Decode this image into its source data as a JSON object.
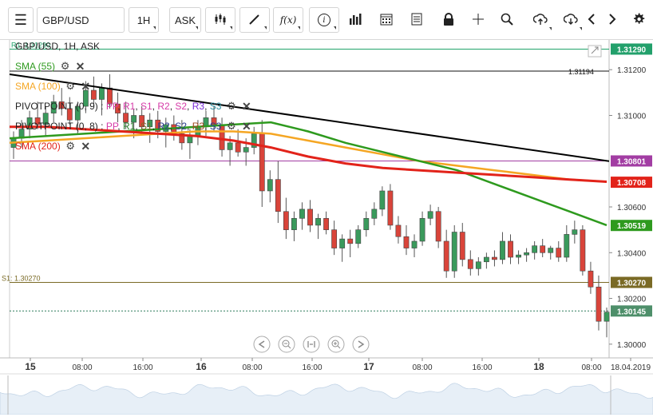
{
  "toolbar": {
    "symbol": "GBP/USD",
    "timeframe": "1H",
    "price_type": "ASK",
    "icons": [
      "menu-icon",
      "candlestick-icon",
      "draw-line-icon",
      "function-icon",
      "info-icon",
      "bar-chart-icon",
      "calendar-icon",
      "news-icon",
      "lock-icon",
      "crosshair-icon",
      "zoom-icon",
      "upload-icon",
      "download-icon",
      "chevron-left-icon",
      "chevron-right-icon",
      "gear-icon"
    ]
  },
  "legend": {
    "instrument": "GBP/USD, 1H, ASK",
    "sma55": "SMA (55)",
    "sma100": "SMA (100)",
    "pivot1_name": "PIVOTPOINT (0, 9)",
    "pivot2_name": "PIVOTPOINT (0, 8)",
    "sma200": "SMA (200)",
    "pivot_sep": " : ",
    "pivot_labels": [
      "PP",
      "R1",
      "S1",
      "R2",
      "S2",
      "R3",
      "S3"
    ],
    "pivot1_colors": [
      "#d63aa8",
      "#d63aa8",
      "#d63aa8",
      "#d63aa8",
      "#d63aa8",
      "#7a2bd6",
      "#2a8fa0"
    ],
    "pivot2_colors": [
      "#d63aa8",
      "#2a7d2a",
      "#7a6a2a",
      "#2a3c8f",
      "#2a3c8f",
      "#a04a20",
      "#2a3c8f"
    ]
  },
  "colors": {
    "sma55": "#2e9a1e",
    "sma100": "#f5a623",
    "sma200": "#e2231a",
    "trend": "#000000",
    "up": "#3a9a5c",
    "down": "#d9443a",
    "r1_line": "#21a36b",
    "pivot_line": "#a23da3",
    "s1_line": "#7a6a25",
    "last_line": "#2e7d5b"
  },
  "chart_data": {
    "type": "candlestick",
    "symbol": "GBP/USD",
    "ylim": [
      1.2994,
      1.3133
    ],
    "y_ticks": [
      "1.31200",
      "1.31000",
      "1.30600",
      "1.30400",
      "1.30200",
      "1.30000"
    ],
    "x_ticks": [
      "15",
      "08:00",
      "16:00",
      "16",
      "08:00",
      "16:00",
      "17",
      "08:00",
      "16:00",
      "18",
      "08:00",
      "18.04.2019"
    ],
    "levels": {
      "r1": {
        "label": "R1: 1.31290",
        "value": 1.3129,
        "tag": "1.31290"
      },
      "trend_end": {
        "value": 1.30801,
        "tag": "1.30801"
      },
      "sma200_end": {
        "value": 1.30708,
        "tag": "1.30708"
      },
      "sma55_end": {
        "value": 1.30519,
        "tag": "1.30519"
      },
      "s1": {
        "label": "S1: 1.30270",
        "value": 1.3027,
        "tag": "1.30270"
      },
      "last": {
        "value": 1.30145,
        "tag": "1.30145"
      },
      "trendline_label": "1.31194"
    },
    "candles": [
      [
        1.3086,
        1.3093,
        1.3081,
        1.309
      ],
      [
        1.309,
        1.3098,
        1.3086,
        1.3094
      ],
      [
        1.3094,
        1.3102,
        1.309,
        1.3099
      ],
      [
        1.3099,
        1.3106,
        1.3094,
        1.3096
      ],
      [
        1.3096,
        1.3104,
        1.3091,
        1.3101
      ],
      [
        1.3101,
        1.3109,
        1.3097,
        1.3106
      ],
      [
        1.3106,
        1.3112,
        1.31,
        1.3103
      ],
      [
        1.3103,
        1.3108,
        1.3096,
        1.3098
      ],
      [
        1.3098,
        1.3106,
        1.3092,
        1.3104
      ],
      [
        1.3104,
        1.3115,
        1.3101,
        1.3111
      ],
      [
        1.3111,
        1.3117,
        1.3104,
        1.3107
      ],
      [
        1.3107,
        1.3114,
        1.31,
        1.3112
      ],
      [
        1.3112,
        1.3118,
        1.3103,
        1.3105
      ],
      [
        1.3105,
        1.311,
        1.3097,
        1.3101
      ],
      [
        1.3101,
        1.3106,
        1.3094,
        1.3097
      ],
      [
        1.3097,
        1.3103,
        1.309,
        1.31
      ],
      [
        1.31,
        1.3104,
        1.3093,
        1.3095
      ],
      [
        1.3095,
        1.3101,
        1.3088,
        1.3098
      ],
      [
        1.3098,
        1.3102,
        1.309,
        1.3093
      ],
      [
        1.3093,
        1.3099,
        1.3086,
        1.3096
      ],
      [
        1.3096,
        1.31,
        1.3089,
        1.3092
      ],
      [
        1.3092,
        1.3098,
        1.3085,
        1.3088
      ],
      [
        1.3088,
        1.3094,
        1.3081,
        1.3091
      ],
      [
        1.3091,
        1.3098,
        1.3087,
        1.3095
      ],
      [
        1.3095,
        1.3102,
        1.3091,
        1.3099
      ],
      [
        1.3099,
        1.3104,
        1.3093,
        1.3096
      ],
      [
        1.3096,
        1.3099,
        1.3082,
        1.3085
      ],
      [
        1.3085,
        1.3091,
        1.3078,
        1.3088
      ],
      [
        1.3088,
        1.3094,
        1.3082,
        1.3084
      ],
      [
        1.3084,
        1.309,
        1.3078,
        1.3086
      ],
      [
        1.3086,
        1.3095,
        1.3083,
        1.3092
      ],
      [
        1.3092,
        1.3098,
        1.306,
        1.3067
      ],
      [
        1.3067,
        1.3076,
        1.3062,
        1.3072
      ],
      [
        1.3072,
        1.308,
        1.3053,
        1.3058
      ],
      [
        1.3058,
        1.3064,
        1.3046,
        1.305
      ],
      [
        1.305,
        1.3058,
        1.3045,
        1.3055
      ],
      [
        1.3055,
        1.3062,
        1.305,
        1.3059
      ],
      [
        1.3059,
        1.3063,
        1.3049,
        1.3052
      ],
      [
        1.3052,
        1.3057,
        1.3046,
        1.3055
      ],
      [
        1.3055,
        1.3058,
        1.3048,
        1.305
      ],
      [
        1.305,
        1.3054,
        1.3039,
        1.3042
      ],
      [
        1.3042,
        1.3048,
        1.3036,
        1.3046
      ],
      [
        1.3046,
        1.305,
        1.3038,
        1.3044
      ],
      [
        1.3044,
        1.3052,
        1.3042,
        1.305
      ],
      [
        1.305,
        1.3058,
        1.3047,
        1.3055
      ],
      [
        1.3055,
        1.3062,
        1.3052,
        1.3059
      ],
      [
        1.3059,
        1.3069,
        1.3056,
        1.3067
      ],
      [
        1.3067,
        1.307,
        1.305,
        1.3052
      ],
      [
        1.3052,
        1.3056,
        1.3044,
        1.3047
      ],
      [
        1.3047,
        1.3052,
        1.3039,
        1.3042
      ],
      [
        1.3042,
        1.3048,
        1.3038,
        1.3045
      ],
      [
        1.3045,
        1.3058,
        1.3043,
        1.3055
      ],
      [
        1.3055,
        1.3061,
        1.3052,
        1.3058
      ],
      [
        1.3058,
        1.306,
        1.3042,
        1.3045
      ],
      [
        1.3045,
        1.305,
        1.3029,
        1.3032
      ],
      [
        1.3032,
        1.3052,
        1.3029,
        1.3049
      ],
      [
        1.3049,
        1.3053,
        1.3034,
        1.3037
      ],
      [
        1.3037,
        1.3041,
        1.303,
        1.3033
      ],
      [
        1.3033,
        1.3038,
        1.303,
        1.3036
      ],
      [
        1.3036,
        1.304,
        1.3033,
        1.3038
      ],
      [
        1.3038,
        1.3041,
        1.3034,
        1.3037
      ],
      [
        1.3037,
        1.3049,
        1.3035,
        1.3045
      ],
      [
        1.3045,
        1.3048,
        1.3035,
        1.3038
      ],
      [
        1.3038,
        1.3041,
        1.3035,
        1.3039
      ],
      [
        1.3039,
        1.3042,
        1.3036,
        1.304
      ],
      [
        1.304,
        1.3045,
        1.3037,
        1.3043
      ],
      [
        1.3043,
        1.3046,
        1.3038,
        1.304
      ],
      [
        1.304,
        1.3043,
        1.3037,
        1.3042
      ],
      [
        1.3042,
        1.3045,
        1.3036,
        1.3038
      ],
      [
        1.3038,
        1.3052,
        1.3036,
        1.3048
      ],
      [
        1.3048,
        1.3054,
        1.3044,
        1.305
      ],
      [
        1.305,
        1.3052,
        1.303,
        1.3032
      ],
      [
        1.3032,
        1.3036,
        1.3022,
        1.3025
      ],
      [
        1.3025,
        1.303,
        1.3006,
        1.301
      ],
      [
        1.301,
        1.3016,
        1.3003,
        1.3014
      ]
    ],
    "sma55": [
      1.309,
      1.3091,
      1.3092,
      1.3093,
      1.3094,
      1.3095,
      1.3096,
      1.3097,
      1.3093,
      1.3088,
      1.3084,
      1.308,
      1.3076,
      1.307,
      1.3064,
      1.3058,
      1.3052
    ],
    "sma100": [
      1.3088,
      1.3089,
      1.309,
      1.3091,
      1.3092,
      1.3093,
      1.3093,
      1.3092,
      1.3089,
      1.3086,
      1.3083,
      1.308,
      1.3078,
      1.3076,
      1.3074,
      1.3072,
      1.3071
    ],
    "sma200": [
      1.3095,
      1.3095,
      1.3094,
      1.3093,
      1.3092,
      1.3091,
      1.3089,
      1.3086,
      1.3082,
      1.3079,
      1.3077,
      1.3076,
      1.3075,
      1.3074,
      1.3073,
      1.3072,
      1.3071
    ],
    "trendline": [
      1.3118,
      1.308
    ]
  },
  "nav": {
    "buttons": [
      "scroll-left",
      "zoom-out",
      "reset-zoom",
      "zoom-in",
      "scroll-right"
    ]
  }
}
